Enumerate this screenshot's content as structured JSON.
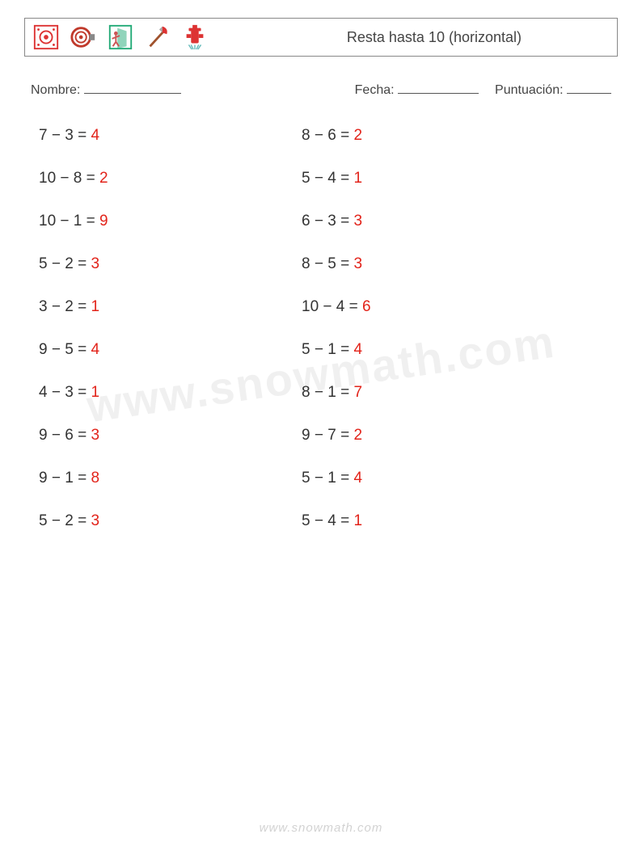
{
  "header": {
    "title": "Resta hasta 10 (horizontal)",
    "icons": [
      {
        "name": "fire-alarm-icon"
      },
      {
        "name": "fire-hose-icon"
      },
      {
        "name": "exit-icon"
      },
      {
        "name": "fire-axe-icon"
      },
      {
        "name": "fire-hydrant-icon"
      }
    ]
  },
  "info": {
    "name_label": "Nombre:",
    "date_label": "Fecha:",
    "score_label": "Puntuación:"
  },
  "columns": [
    [
      {
        "expr": "7 − 3 = ",
        "ans": "4"
      },
      {
        "expr": "10 − 8 = ",
        "ans": "2"
      },
      {
        "expr": "10 − 1 = ",
        "ans": "9"
      },
      {
        "expr": "5 − 2 = ",
        "ans": "3"
      },
      {
        "expr": "3 − 2 = ",
        "ans": "1"
      },
      {
        "expr": "9 − 5 = ",
        "ans": "4"
      },
      {
        "expr": "4 − 3 = ",
        "ans": "1"
      },
      {
        "expr": "9 − 6 = ",
        "ans": "3"
      },
      {
        "expr": "9 − 1 = ",
        "ans": "8"
      },
      {
        "expr": "5 − 2 = ",
        "ans": "3"
      }
    ],
    [
      {
        "expr": "8 − 6 = ",
        "ans": "2"
      },
      {
        "expr": "5 − 4 = ",
        "ans": "1"
      },
      {
        "expr": "6 − 3 = ",
        "ans": "3"
      },
      {
        "expr": "8 − 5 = ",
        "ans": "3"
      },
      {
        "expr": "10 − 4 = ",
        "ans": "6"
      },
      {
        "expr": "5 − 1 = ",
        "ans": "4"
      },
      {
        "expr": "8 − 1 = ",
        "ans": "7"
      },
      {
        "expr": "9 − 7 = ",
        "ans": "2"
      },
      {
        "expr": "5 − 1 = ",
        "ans": "4"
      },
      {
        "expr": "5 − 4 = ",
        "ans": "1"
      }
    ]
  ],
  "watermark": "www.snowmath.com",
  "footer": "www.snowmath.com",
  "colors": {
    "answer": "#e2231a",
    "text": "#333333",
    "border": "#888888",
    "watermark": "rgba(0,0,0,0.06)"
  }
}
